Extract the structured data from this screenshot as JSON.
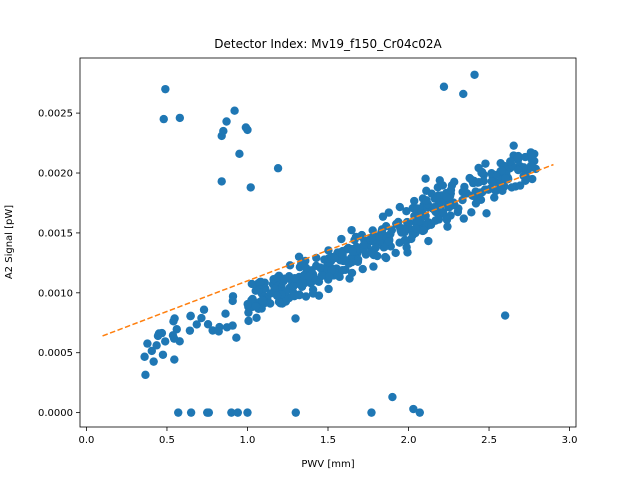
{
  "chart_data": {
    "type": "scatter",
    "title": "Detector Index: Mv19_f150_Cr04c02A",
    "xlabel": "PWV [mm]",
    "ylabel": "A2 Signal [pW]",
    "xlim": [
      -0.04,
      3.04
    ],
    "ylim": [
      -0.00012,
      0.00296
    ],
    "xticks": [
      0.0,
      0.5,
      1.0,
      1.5,
      2.0,
      2.5,
      3.0
    ],
    "xtick_labels": [
      "0.0",
      "0.5",
      "1.0",
      "1.5",
      "2.0",
      "2.5",
      "3.0"
    ],
    "yticks": [
      0.0,
      0.0005,
      0.001,
      0.0015,
      0.002,
      0.0025
    ],
    "ytick_labels": [
      "0.0000",
      "0.0005",
      "0.0010",
      "0.0015",
      "0.0020",
      "0.0025"
    ],
    "colors": {
      "points": "#1f77b4",
      "fit": "#ff7f0e"
    },
    "fit_line": {
      "x": [
        0.1,
        2.9
      ],
      "y": [
        0.00064,
        0.00207
      ],
      "style": "dashed"
    },
    "outliers": {
      "x": [
        0.49,
        0.48,
        0.58,
        0.87,
        0.92,
        0.84,
        0.85,
        0.99,
        1.0,
        0.95,
        0.84,
        1.02,
        1.19,
        0.57,
        0.65,
        0.75,
        0.76,
        0.9,
        0.94,
        1.0,
        1.3,
        1.77,
        1.9,
        2.03,
        2.07,
        2.6,
        2.22,
        2.34,
        2.41
      ],
      "y": [
        0.0027,
        0.00245,
        0.00246,
        0.00243,
        0.00252,
        0.00231,
        0.00235,
        0.00238,
        0.00236,
        0.00216,
        0.00193,
        0.00188,
        0.00204,
        0.0,
        0.0,
        0.0,
        0.0,
        0.0,
        0.0,
        0.0,
        0.0,
        0.0,
        0.00013,
        3e-05,
        0.0,
        0.00081,
        0.00272,
        0.00266,
        0.00282
      ]
    },
    "cluster": {
      "n": 440,
      "x_range": [
        0.35,
        2.8
      ],
      "trend": "A2 Signal increases roughly linearly with PWV, from about 0.0007 pW at 0.35 mm to about 0.0020 pW at 2.8 mm, with scatter of roughly +/-0.0002 pW"
    }
  }
}
